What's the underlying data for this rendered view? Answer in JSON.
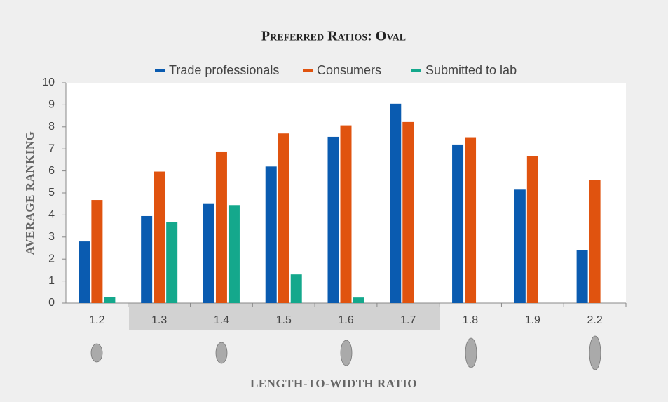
{
  "chart_data": {
    "type": "bar",
    "title": "Preferred Ratios: Oval",
    "x_label": "LENGTH-TO-WIDTH RATIO",
    "y_label": "AVERAGE RANKING",
    "categories": [
      "1.2",
      "1.3",
      "1.4",
      "1.5",
      "1.6",
      "1.7",
      "1.8",
      "1.9",
      "2.2"
    ],
    "series": [
      {
        "name": "Trade professionals",
        "color": "#0a5bb0",
        "values": [
          2.8,
          3.95,
          4.5,
          6.2,
          7.55,
          9.05,
          7.2,
          5.15,
          2.4
        ]
      },
      {
        "name": "Consumers",
        "color": "#e0530f",
        "values": [
          4.68,
          5.97,
          6.88,
          7.7,
          8.07,
          8.22,
          7.53,
          6.67,
          5.6
        ]
      },
      {
        "name": "Submitted to lab",
        "color": "#14a88c",
        "values": [
          0.28,
          3.68,
          4.45,
          1.3,
          0.25,
          null,
          null,
          null,
          null
        ]
      }
    ],
    "ylim": [
      0,
      10
    ],
    "yticks": [
      0,
      1,
      2,
      3,
      4,
      5,
      6,
      7,
      8,
      9,
      10
    ]
  }
}
